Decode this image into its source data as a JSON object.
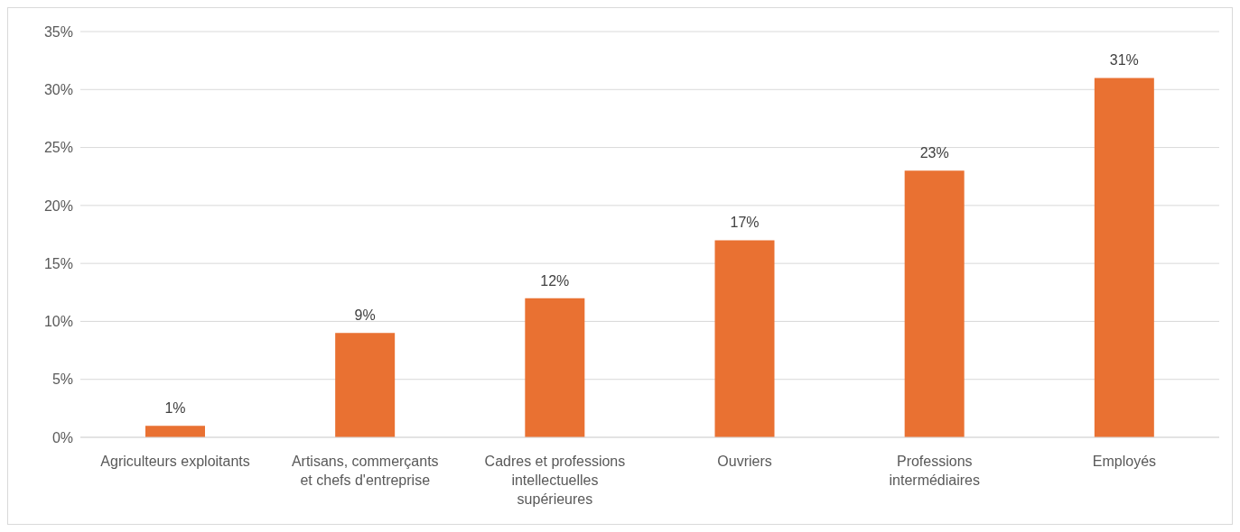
{
  "chart_data": {
    "type": "bar",
    "categories": [
      "Agriculteurs exploitants",
      "Artisans, commerçants et chefs d'entreprise",
      "Cadres et professions intellectuelles supérieures",
      "Ouvriers",
      "Professions intermédiaires",
      "Employés"
    ],
    "values": [
      1,
      9,
      12,
      17,
      23,
      31
    ],
    "value_labels": [
      "1%",
      "9%",
      "12%",
      "17%",
      "23%",
      "31%"
    ],
    "color": "#e97132",
    "ylim": [
      0,
      35
    ],
    "yticks": [
      {
        "value": 0,
        "label": "0%"
      },
      {
        "value": 5,
        "label": "5%"
      },
      {
        "value": 10,
        "label": "10%"
      },
      {
        "value": 15,
        "label": "15%"
      },
      {
        "value": 20,
        "label": "20%"
      },
      {
        "value": 25,
        "label": "25%"
      },
      {
        "value": 30,
        "label": "30%"
      },
      {
        "value": 35,
        "label": "35%"
      }
    ],
    "grid": "y",
    "legend": false
  }
}
